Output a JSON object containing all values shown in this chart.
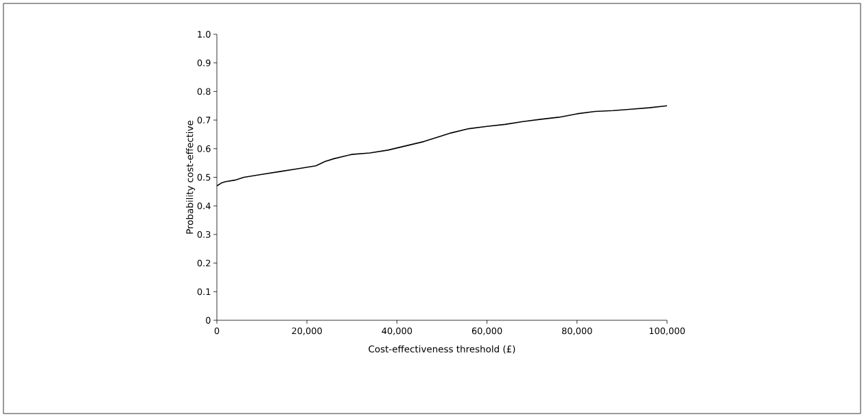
{
  "chart_data": {
    "type": "line",
    "xlabel": "Cost-effectiveness threshold (£)",
    "ylabel": "Probability cost-effective",
    "x": [
      0,
      1000,
      2000,
      4000,
      6000,
      10000,
      14000,
      18000,
      22000,
      24000,
      26000,
      30000,
      34000,
      38000,
      42000,
      46000,
      50000,
      52000,
      56000,
      60000,
      64000,
      68000,
      72000,
      76000,
      80000,
      84000,
      88000,
      92000,
      96000,
      100000
    ],
    "series": [
      {
        "color": "#000000",
        "values": [
          0.47,
          0.48,
          0.485,
          0.49,
          0.5,
          0.51,
          0.52,
          0.53,
          0.54,
          0.555,
          0.565,
          0.58,
          0.585,
          0.595,
          0.61,
          0.625,
          0.645,
          0.655,
          0.67,
          0.678,
          0.685,
          0.695,
          0.703,
          0.71,
          0.722,
          0.73,
          0.733,
          0.738,
          0.743,
          0.75
        ]
      }
    ],
    "xlim": [
      0,
      100000
    ],
    "ylim": [
      0,
      1.0
    ],
    "xticks": [
      0,
      {
        "value": 20000,
        "label": "20,000"
      },
      {
        "value": 40000,
        "label": "40,000"
      },
      {
        "value": 60000,
        "label": "60,000"
      },
      {
        "value": 80000,
        "label": "80,000"
      },
      {
        "value": 100000,
        "label": "100,000"
      }
    ],
    "yticks": [
      0,
      0.1,
      0.2,
      0.3,
      0.4,
      0.5,
      0.6,
      0.7,
      0.8,
      0.9,
      {
        "value": 1.0,
        "label": "1.0"
      }
    ],
    "grid": false,
    "legend": false,
    "marker": "none",
    "line_style": "solid"
  }
}
